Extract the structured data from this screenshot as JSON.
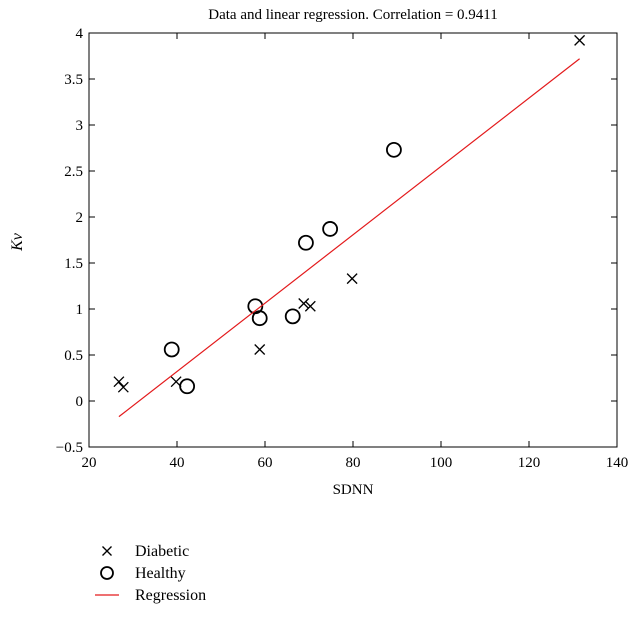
{
  "chart_data": {
    "type": "scatter",
    "title": "Data and linear regression. Correlation = 0.9411",
    "xlabel": "SDNN",
    "ylabel": "Kν",
    "xlim": [
      20,
      140
    ],
    "ylim": [
      -0.5,
      4
    ],
    "xticks": [
      20,
      40,
      60,
      80,
      100,
      120,
      140
    ],
    "yticks": [
      -0.5,
      0,
      0.5,
      1,
      1.5,
      2,
      2.5,
      3,
      3.5,
      4
    ],
    "ytick_labels": [
      "−0.5",
      "0",
      "0.5",
      "1",
      "1.5",
      "2",
      "2.5",
      "3",
      "3.5",
      "4"
    ],
    "grid": false,
    "legend_position": "bottom-left, below axes",
    "series": [
      {
        "name": "Diabetic",
        "marker": "x",
        "color": "#000000",
        "points": [
          [
            26.8,
            0.21
          ],
          [
            27.8,
            0.15
          ],
          [
            39.8,
            0.21
          ],
          [
            58.8,
            0.56
          ],
          [
            68.8,
            1.06
          ],
          [
            70.3,
            1.03
          ],
          [
            79.8,
            1.33
          ],
          [
            131.5,
            3.92
          ]
        ]
      },
      {
        "name": "Healthy",
        "marker": "circle",
        "color": "#000000",
        "points": [
          [
            38.8,
            0.56
          ],
          [
            42.3,
            0.16
          ],
          [
            57.8,
            1.03
          ],
          [
            58.8,
            0.9
          ],
          [
            66.3,
            0.92
          ],
          [
            69.3,
            1.72
          ],
          [
            74.8,
            1.87
          ],
          [
            89.3,
            2.73
          ]
        ]
      },
      {
        "name": "Regression",
        "type": "line",
        "color": "#e31a1c",
        "points": [
          [
            26.8,
            -0.17
          ],
          [
            131.5,
            3.72
          ]
        ]
      }
    ]
  }
}
